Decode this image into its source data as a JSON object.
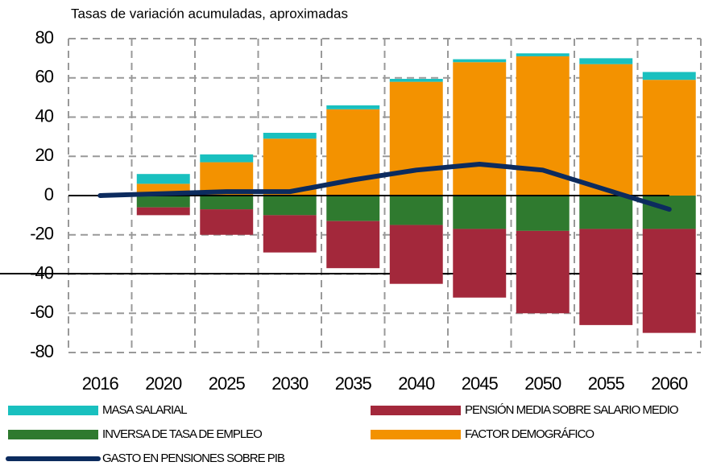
{
  "chart_data": {
    "type": "bar",
    "title": "Tasas de variación acumuladas, aproximadas",
    "categories": [
      "2016",
      "2020",
      "2025",
      "2030",
      "2035",
      "2040",
      "2045",
      "2050",
      "2055",
      "2060"
    ],
    "series": [
      {
        "name": "MASA SALARIAL",
        "color": "#19c0bf",
        "values": [
          0,
          5,
          4,
          3,
          2,
          1.5,
          1.5,
          1.5,
          3,
          4
        ]
      },
      {
        "name": "PENSIÓN MEDIA SOBRE SALARIO MEDIO",
        "color": "#a3283b",
        "values": [
          0,
          -4,
          -13,
          -19,
          -24,
          -30,
          -35,
          -42,
          -49,
          -53
        ]
      },
      {
        "name": "INVERSA DE TASA DE EMPLEO",
        "color": "#2f7a2f",
        "values": [
          0,
          -6,
          -7,
          -10,
          -13,
          -15,
          -17,
          -18,
          -17,
          -17
        ]
      },
      {
        "name": "FACTOR DEMOGRÁFICO",
        "color": "#f39200",
        "values": [
          0,
          6,
          17,
          29,
          44,
          58,
          68,
          71,
          67,
          59
        ]
      },
      {
        "name": "GASTO EN PENSIONES SOBRE PIB",
        "color": "#0c2b5e",
        "type": "line",
        "values": [
          0,
          1,
          2,
          2,
          8,
          13,
          16,
          13,
          3,
          -7
        ]
      }
    ],
    "ylim": [
      -80,
      80
    ],
    "yticks": [
      -80,
      -60,
      -40,
      -20,
      0,
      20,
      40,
      60,
      80
    ],
    "grid": true
  }
}
